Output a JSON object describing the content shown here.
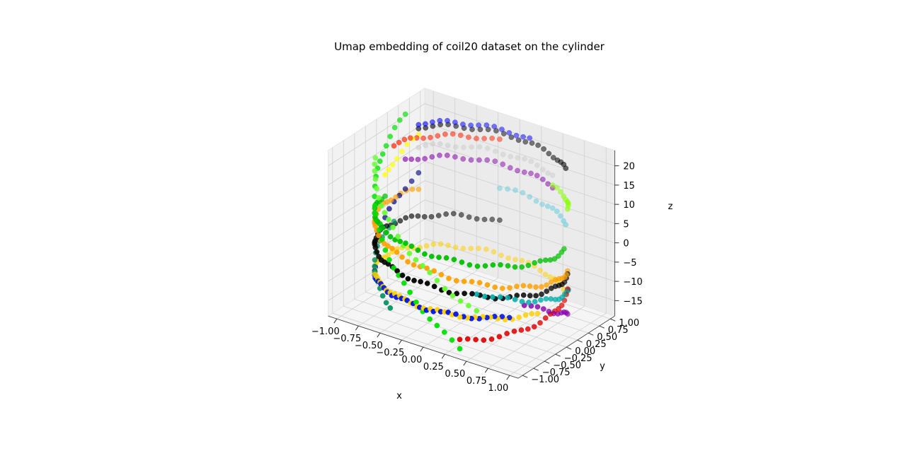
{
  "chart_data": {
    "type": "scatter",
    "projection": "3d",
    "title": "Umap embedding of coil20 dataset on the cylinder",
    "xlabel": "x",
    "ylabel": "y",
    "zlabel": "z",
    "xlim": [
      -1.1,
      1.1
    ],
    "ylim": [
      -1.1,
      1.1
    ],
    "zlim": [
      -19,
      24
    ],
    "xticks": [
      "−1.00",
      "−0.75",
      "−0.50",
      "−0.25",
      "0.00",
      "0.25",
      "0.50",
      "0.75",
      "1.00"
    ],
    "yticks": [
      "−1.00",
      "−0.75",
      "−0.50",
      "−0.25",
      "0.00",
      "0.25",
      "0.50",
      "0.75",
      "1.00"
    ],
    "zticks": [
      "−15",
      "−10",
      "−5",
      "0",
      "5",
      "10",
      "15",
      "20"
    ],
    "xtick_values": [
      -1,
      -0.75,
      -0.5,
      -0.25,
      0,
      0.25,
      0.5,
      0.75,
      1
    ],
    "ytick_values": [
      -1,
      -0.75,
      -0.5,
      -0.25,
      0,
      0.25,
      0.5,
      0.75,
      1
    ],
    "ztick_values": [
      -15,
      -10,
      -5,
      0,
      5,
      10,
      15,
      20
    ],
    "grid": true,
    "legend": "none",
    "clusters": [
      {
        "color": "#00e000",
        "theta_start": 160,
        "theta_end": 290,
        "z_start": 24,
        "z_end": -18
      },
      {
        "color": "#e00000",
        "theta_start": 290,
        "theta_end": 20,
        "z_start": -16,
        "z_end": -8
      },
      {
        "color": "#0010e0",
        "theta_start": 200,
        "theta_end": 320,
        "z_start": -11,
        "z_end": -9
      },
      {
        "color": "#009060",
        "theta_start": 170,
        "theta_end": 240,
        "z_start": -3,
        "z_end": -14
      },
      {
        "color": "#00aaaa",
        "theta_start": 300,
        "theta_end": 30,
        "z_start": -3,
        "z_end": -9
      },
      {
        "color": "#ffd000",
        "theta_start": 40,
        "theta_end": 340,
        "z_start": -12,
        "z_end": -9
      },
      {
        "color": "#ffa000",
        "theta_start": 150,
        "theta_end": 20,
        "z_start": 4,
        "z_end": -3
      },
      {
        "color": "#000000",
        "theta_start": 40,
        "theta_end": 150,
        "z_start": 20,
        "z_end": 20
      },
      {
        "color": "#000000",
        "theta_start": 100,
        "theta_end": 20,
        "z_start": -3,
        "z_end": -4
      },
      {
        "color": "#000080",
        "theta_start": 150,
        "theta_end": 190,
        "z_start": 8,
        "z_end": -4
      },
      {
        "color": "#00c000",
        "theta_start": 180,
        "theta_end": 10,
        "z_start": 5,
        "z_end": 4
      },
      {
        "color": "#8800aa",
        "theta_start": 60,
        "theta_end": 160,
        "z_start": 12,
        "z_end": 12
      },
      {
        "color": "#8800aa",
        "theta_start": 330,
        "theta_end": 20,
        "z_start": -6,
        "z_end": -14
      },
      {
        "color": "#88ff00",
        "theta_start": 20,
        "theta_end": 60,
        "z_start": 13,
        "z_end": 12
      },
      {
        "color": "#ff2000",
        "theta_start": 100,
        "theta_end": 170,
        "z_start": 18,
        "z_end": 17
      },
      {
        "color": "#0000ff",
        "theta_start": 80,
        "theta_end": 150,
        "z_start": 21,
        "z_end": 21
      },
      {
        "color": "#cccccc",
        "theta_start": 60,
        "theta_end": 150,
        "z_start": 15,
        "z_end": 15
      },
      {
        "color": "#66ccdd",
        "theta_start": 40,
        "theta_end": 100,
        "z_start": 6,
        "z_end": 6
      },
      {
        "color": "#66ff33",
        "theta_start": 200,
        "theta_end": 300,
        "z_start": 18,
        "z_end": -8
      },
      {
        "color": "#ffff00",
        "theta_start": 150,
        "theta_end": 180,
        "z_start": 18,
        "z_end": 10
      }
    ]
  }
}
